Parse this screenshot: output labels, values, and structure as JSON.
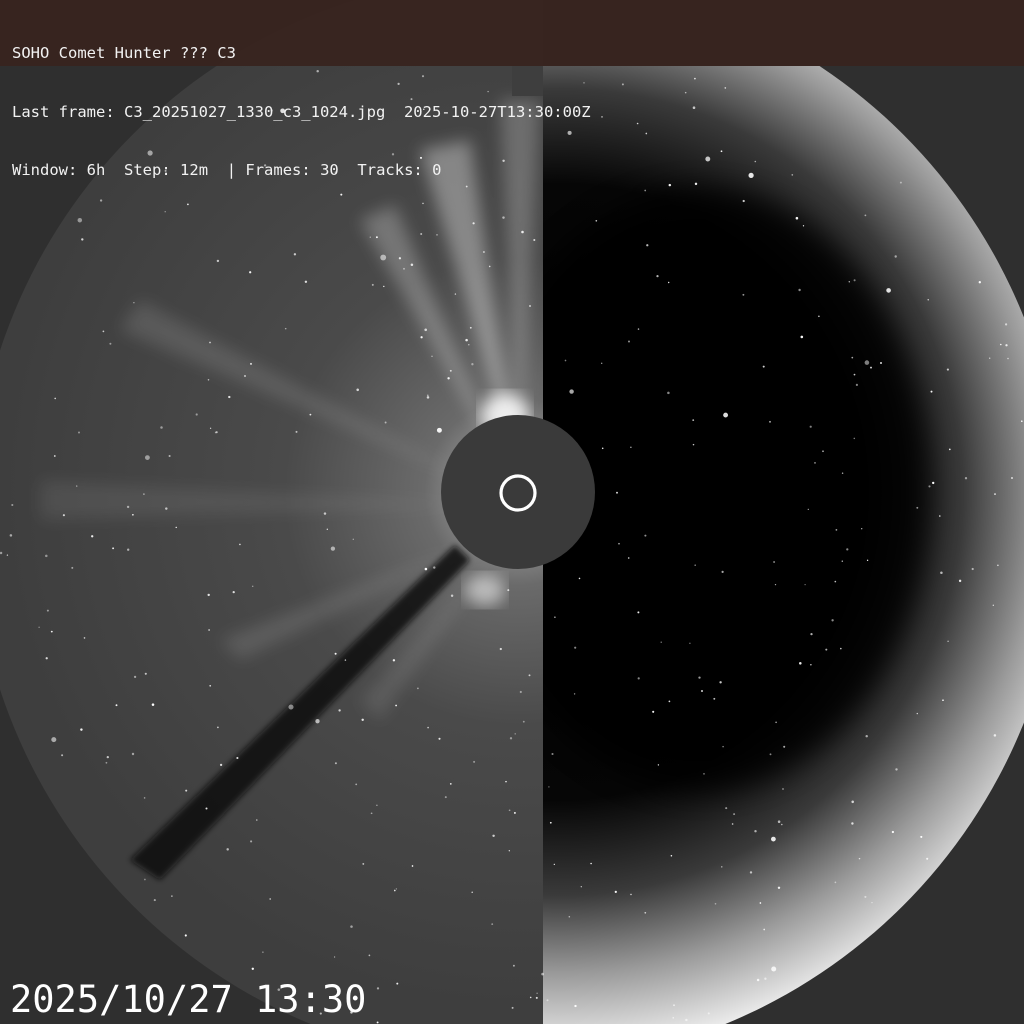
{
  "viewer": {
    "title": "SOHO Comet Hunter ??? C3",
    "last_frame_label": "Last frame:",
    "last_frame_file": "C3_20251027_1330_c3_1024.jpg",
    "last_frame_time": "2025-10-27T13:30:00Z",
    "window_label": "Window:",
    "window_value": "6h",
    "step_label": "Step:",
    "step_value": "12m",
    "frames_label": "Frames:",
    "frames_value": "30",
    "tracks_label": "Tracks:",
    "tracks_value": "0"
  },
  "image": {
    "timestamp": "2025/10/27 13:30",
    "instrument": "C3",
    "colors": {
      "background": "#2f2f2f",
      "occulter": "#3a3a3a",
      "sun_outline": "#ffffff",
      "hud_background": "#38241e"
    }
  }
}
